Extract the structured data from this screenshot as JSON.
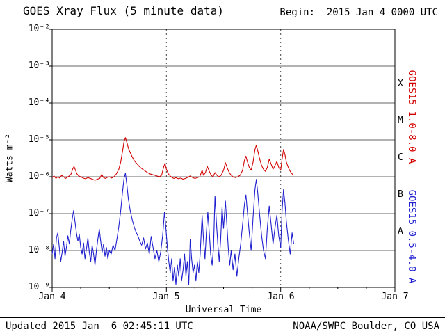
{
  "header": {
    "title": "GOES Xray Flux (5 minute data)",
    "begin": "Begin:  2015 Jan 4 0000 UTC"
  },
  "footer": {
    "updated": "Updated 2015 Jan  6 02:45:11 UTC",
    "source": "NOAA/SWPC Boulder, CO USA"
  },
  "chart_data": {
    "type": "line",
    "title": "GOES Xray Flux (5 minute data)",
    "xlabel": "Universal Time",
    "ylabel": "Watts m⁻²",
    "x_unit": "hours since 2015 Jan 4 0000 UTC",
    "xlim": [
      0,
      72
    ],
    "ylim_log10": [
      -9,
      -2
    ],
    "grid": "horizontal decade lines solid, day boundaries dashed",
    "x_tick_labels": [
      "Jan 4",
      "Jan 5",
      "Jan 6",
      "Jan 7"
    ],
    "x_ticks_hours": [
      0,
      24,
      48,
      72
    ],
    "minor_tick_step_hours": 6,
    "day_boundary_dashes_hours": [
      24,
      48
    ],
    "y_tick_labels": [
      "10⁻²",
      "10⁻³",
      "10⁻⁴",
      "10⁻⁵",
      "10⁻⁶",
      "10⁻⁷",
      "10⁻⁸",
      "10⁻⁹"
    ],
    "y_ticks_exp": [
      -2,
      -3,
      -4,
      -5,
      -6,
      -7,
      -8,
      -9
    ],
    "class_letters": [
      "X",
      "M",
      "C",
      "B",
      "A"
    ],
    "class_letter_center_exp": [
      -3.5,
      -4.5,
      -5.5,
      -6.5,
      -7.5
    ],
    "series": [
      {
        "name": "GOES15 1.0-8.0 A",
        "color": "#d40000",
        "points": [
          [
            0,
            9.5e-07
          ],
          [
            0.4,
            1.05e-06
          ],
          [
            0.8,
            9e-07
          ],
          [
            1.2,
            1e-06
          ],
          [
            1.6,
            9.2e-07
          ],
          [
            2,
            1.1e-06
          ],
          [
            2.4,
            1e-06
          ],
          [
            2.8,
            9e-07
          ],
          [
            3.2,
            9.8e-07
          ],
          [
            3.6,
            1.05e-06
          ],
          [
            4,
            1.2e-06
          ],
          [
            4.3,
            1.6e-06
          ],
          [
            4.6,
            1.9e-06
          ],
          [
            4.9,
            1.5e-06
          ],
          [
            5.2,
            1.2e-06
          ],
          [
            5.6,
            1.05e-06
          ],
          [
            6,
            1e-06
          ],
          [
            6.5,
            9.2e-07
          ],
          [
            7,
            8.8e-07
          ],
          [
            7.5,
            9.5e-07
          ],
          [
            8,
            9e-07
          ],
          [
            8.5,
            8.5e-07
          ],
          [
            9,
            8e-07
          ],
          [
            9.5,
            8.6e-07
          ],
          [
            10,
            9e-07
          ],
          [
            10.4,
            1.15e-06
          ],
          [
            10.8,
            9.5e-07
          ],
          [
            11.2,
            9e-07
          ],
          [
            11.6,
            9.6e-07
          ],
          [
            12,
            1e-06
          ],
          [
            12.5,
            9.2e-07
          ],
          [
            13,
            1e-06
          ],
          [
            13.5,
            1.2e-06
          ],
          [
            14,
            1.6e-06
          ],
          [
            14.4,
            2.5e-06
          ],
          [
            14.8,
            5e-06
          ],
          [
            15.1,
            9e-06
          ],
          [
            15.4,
            1.15e-05
          ],
          [
            15.7,
            8.5e-06
          ],
          [
            16,
            6e-06
          ],
          [
            16.4,
            4.5e-06
          ],
          [
            16.8,
            3.5e-06
          ],
          [
            17.2,
            2.8e-06
          ],
          [
            17.6,
            2.4e-06
          ],
          [
            18,
            2.1e-06
          ],
          [
            18.5,
            1.8e-06
          ],
          [
            19,
            1.6e-06
          ],
          [
            19.5,
            1.45e-06
          ],
          [
            20,
            1.3e-06
          ],
          [
            20.5,
            1.2e-06
          ],
          [
            21,
            1.15e-06
          ],
          [
            21.5,
            1.1e-06
          ],
          [
            22,
            1.05e-06
          ],
          [
            22.5,
            1e-06
          ],
          [
            23,
            1.1e-06
          ],
          [
            23.4,
            1.8e-06
          ],
          [
            23.7,
            2.3e-06
          ],
          [
            24,
            1.6e-06
          ],
          [
            24.4,
            1.2e-06
          ],
          [
            24.8,
            1.05e-06
          ],
          [
            25.2,
            9.5e-07
          ],
          [
            25.6,
            9e-07
          ],
          [
            26,
            9.5e-07
          ],
          [
            26.5,
            8.8e-07
          ],
          [
            27,
            9.2e-07
          ],
          [
            27.5,
            8.6e-07
          ],
          [
            28,
            9e-07
          ],
          [
            28.5,
            9.6e-07
          ],
          [
            29,
            1.05e-06
          ],
          [
            29.5,
            9.5e-07
          ],
          [
            30,
            9e-07
          ],
          [
            30.5,
            9.4e-07
          ],
          [
            31,
            1e-06
          ],
          [
            31.5,
            1.5e-06
          ],
          [
            31.8,
            1.1e-06
          ],
          [
            32.2,
            1.3e-06
          ],
          [
            32.6,
            1.9e-06
          ],
          [
            33,
            1.4e-06
          ],
          [
            33.4,
            1.1e-06
          ],
          [
            33.8,
            1e-06
          ],
          [
            34.2,
            1.3e-06
          ],
          [
            34.6,
            1.1e-06
          ],
          [
            35,
            1e-06
          ],
          [
            35.5,
            1.1e-06
          ],
          [
            36,
            1.5e-06
          ],
          [
            36.4,
            2.4e-06
          ],
          [
            36.8,
            1.7e-06
          ],
          [
            37.2,
            1.3e-06
          ],
          [
            37.6,
            1.1e-06
          ],
          [
            38,
            1e-06
          ],
          [
            38.5,
            9.5e-07
          ],
          [
            39,
            1e-06
          ],
          [
            39.5,
            1.1e-06
          ],
          [
            40,
            1.5e-06
          ],
          [
            40.4,
            2.8e-06
          ],
          [
            40.7,
            3.6e-06
          ],
          [
            41,
            2.6e-06
          ],
          [
            41.4,
            1.8e-06
          ],
          [
            41.8,
            1.5e-06
          ],
          [
            42.2,
            2.5e-06
          ],
          [
            42.6,
            5.5e-06
          ],
          [
            42.9,
            7.2e-06
          ],
          [
            43.2,
            5e-06
          ],
          [
            43.6,
            3e-06
          ],
          [
            44,
            2e-06
          ],
          [
            44.4,
            1.6e-06
          ],
          [
            44.8,
            1.4e-06
          ],
          [
            45.2,
            1.8e-06
          ],
          [
            45.6,
            3e-06
          ],
          [
            46,
            2.2e-06
          ],
          [
            46.4,
            1.6e-06
          ],
          [
            46.8,
            2e-06
          ],
          [
            47.2,
            2.6e-06
          ],
          [
            47.6,
            1.8e-06
          ],
          [
            48,
            1.5e-06
          ],
          [
            48.3,
            3e-06
          ],
          [
            48.6,
            5.5e-06
          ],
          [
            48.9,
            4e-06
          ],
          [
            49.2,
            2.5e-06
          ],
          [
            49.6,
            1.8e-06
          ],
          [
            50,
            1.4e-06
          ],
          [
            50.4,
            1.2e-06
          ],
          [
            50.75,
            1.1e-06
          ]
        ]
      },
      {
        "name": "GOES15 0.5-4.0 A",
        "color": "#2020d0",
        "points": [
          [
            0,
            8e-09
          ],
          [
            0.3,
            1.5e-08
          ],
          [
            0.6,
            6e-09
          ],
          [
            0.9,
            2.2e-08
          ],
          [
            1.2,
            3e-08
          ],
          [
            1.5,
            1.2e-08
          ],
          [
            1.8,
            5e-09
          ],
          [
            2.1,
            9e-09
          ],
          [
            2.4,
            1.8e-08
          ],
          [
            2.7,
            7e-09
          ],
          [
            3,
            1.2e-08
          ],
          [
            3.3,
            2.5e-08
          ],
          [
            3.6,
            1.5e-08
          ],
          [
            3.9,
            3.5e-08
          ],
          [
            4.2,
            7e-08
          ],
          [
            4.5,
            1.2e-07
          ],
          [
            4.8,
            6e-08
          ],
          [
            5.1,
            3e-08
          ],
          [
            5.4,
            1.8e-08
          ],
          [
            5.7,
            2.8e-08
          ],
          [
            6,
            1.2e-08
          ],
          [
            6.3,
            8e-09
          ],
          [
            6.6,
            1.6e-08
          ],
          [
            6.9,
            6e-09
          ],
          [
            7.2,
            1.1e-08
          ],
          [
            7.5,
            2.2e-08
          ],
          [
            7.8,
            9e-09
          ],
          [
            8.1,
            5e-09
          ],
          [
            8.4,
            1.4e-08
          ],
          [
            8.7,
            8e-09
          ],
          [
            9,
            4e-09
          ],
          [
            9.3,
            1e-08
          ],
          [
            9.6,
            2e-08
          ],
          [
            9.9,
            3.8e-08
          ],
          [
            10.2,
            1.8e-08
          ],
          [
            10.5,
            9e-09
          ],
          [
            10.8,
            1.5e-08
          ],
          [
            11.1,
            7e-09
          ],
          [
            11.4,
            1.2e-08
          ],
          [
            11.7,
            6e-09
          ],
          [
            12,
            1e-08
          ],
          [
            12.4,
            8e-09
          ],
          [
            12.8,
            1.4e-08
          ],
          [
            13.2,
            1e-08
          ],
          [
            13.6,
            2e-08
          ],
          [
            14,
            4.5e-08
          ],
          [
            14.4,
            1.2e-07
          ],
          [
            14.8,
            4e-07
          ],
          [
            15.1,
            9e-07
          ],
          [
            15.4,
            1.25e-06
          ],
          [
            15.7,
            6e-07
          ],
          [
            16,
            2.5e-07
          ],
          [
            16.4,
            1.2e-07
          ],
          [
            16.8,
            7e-08
          ],
          [
            17.2,
            4.5e-08
          ],
          [
            17.6,
            3.2e-08
          ],
          [
            18,
            2.5e-08
          ],
          [
            18.4,
            1.8e-08
          ],
          [
            18.8,
            1.4e-08
          ],
          [
            19.2,
            2.2e-08
          ],
          [
            19.6,
            1.1e-08
          ],
          [
            20,
            1.6e-08
          ],
          [
            20.4,
            8e-09
          ],
          [
            20.8,
            2.4e-08
          ],
          [
            21.2,
            1.2e-08
          ],
          [
            21.6,
            6e-09
          ],
          [
            22,
            1e-08
          ],
          [
            22.4,
            5e-09
          ],
          [
            22.8,
            9e-09
          ],
          [
            23.2,
            2.5e-08
          ],
          [
            23.6,
            1.1e-07
          ],
          [
            23.9,
            4e-08
          ],
          [
            24.2,
            1.2e-08
          ],
          [
            24.5,
            5e-09
          ],
          [
            24.8,
            2.5e-09
          ],
          [
            25.1,
            6e-09
          ],
          [
            25.4,
            1.5e-09
          ],
          [
            25.7,
            3.5e-09
          ],
          [
            26,
            1.2e-09
          ],
          [
            26.3,
            4e-09
          ],
          [
            26.6,
            2e-09
          ],
          [
            26.9,
            6e-09
          ],
          [
            27.2,
            1.5e-09
          ],
          [
            27.5,
            3e-09
          ],
          [
            27.8,
            8e-09
          ],
          [
            28.1,
            2e-09
          ],
          [
            28.4,
            5e-09
          ],
          [
            28.7,
            1.2e-09
          ],
          [
            29,
            2e-08
          ],
          [
            29.3,
            6e-09
          ],
          [
            29.6,
            2.5e-09
          ],
          [
            29.9,
            4e-09
          ],
          [
            30.2,
            1.5e-09
          ],
          [
            30.5,
            5e-09
          ],
          [
            30.8,
            2.5e-09
          ],
          [
            31.1,
            8e-09
          ],
          [
            31.5,
            9e-08
          ],
          [
            31.8,
            2e-08
          ],
          [
            32.1,
            6e-09
          ],
          [
            32.4,
            3e-08
          ],
          [
            32.7,
            1.1e-07
          ],
          [
            33,
            3e-08
          ],
          [
            33.3,
            8e-09
          ],
          [
            33.6,
            4e-09
          ],
          [
            33.9,
            1.2e-08
          ],
          [
            34.2,
            3e-07
          ],
          [
            34.5,
            6e-08
          ],
          [
            34.8,
            1.5e-08
          ],
          [
            35.1,
            5e-09
          ],
          [
            35.4,
            2e-08
          ],
          [
            35.7,
            1.5e-07
          ],
          [
            36,
            4e-08
          ],
          [
            36.4,
            2.2e-07
          ],
          [
            36.7,
            5e-08
          ],
          [
            37,
            1.2e-08
          ],
          [
            37.3,
            4e-09
          ],
          [
            37.6,
            1e-08
          ],
          [
            38,
            3e-09
          ],
          [
            38.4,
            8e-09
          ],
          [
            38.8,
            2e-09
          ],
          [
            39.2,
            6e-09
          ],
          [
            39.6,
            1.5e-08
          ],
          [
            40,
            5e-08
          ],
          [
            40.4,
            1.8e-07
          ],
          [
            40.7,
            3.2e-07
          ],
          [
            41,
            1.2e-07
          ],
          [
            41.4,
            3e-08
          ],
          [
            41.8,
            1e-08
          ],
          [
            42.2,
            8e-08
          ],
          [
            42.6,
            4.5e-07
          ],
          [
            42.9,
            8.5e-07
          ],
          [
            43.2,
            3.5e-07
          ],
          [
            43.6,
            9e-08
          ],
          [
            44,
            2.5e-08
          ],
          [
            44.4,
            1e-08
          ],
          [
            44.8,
            6e-09
          ],
          [
            45.2,
            4e-08
          ],
          [
            45.6,
            1.6e-07
          ],
          [
            46,
            5e-08
          ],
          [
            46.4,
            1.5e-08
          ],
          [
            46.8,
            4e-08
          ],
          [
            47.2,
            9e-08
          ],
          [
            47.6,
            2.5e-08
          ],
          [
            48,
            1.2e-08
          ],
          [
            48.3,
            1.2e-07
          ],
          [
            48.6,
            4.5e-07
          ],
          [
            48.9,
            2e-07
          ],
          [
            49.2,
            6e-08
          ],
          [
            49.6,
            2e-08
          ],
          [
            50,
            8e-09
          ],
          [
            50.4,
            3e-08
          ],
          [
            50.75,
            1.5e-08
          ]
        ]
      }
    ]
  }
}
